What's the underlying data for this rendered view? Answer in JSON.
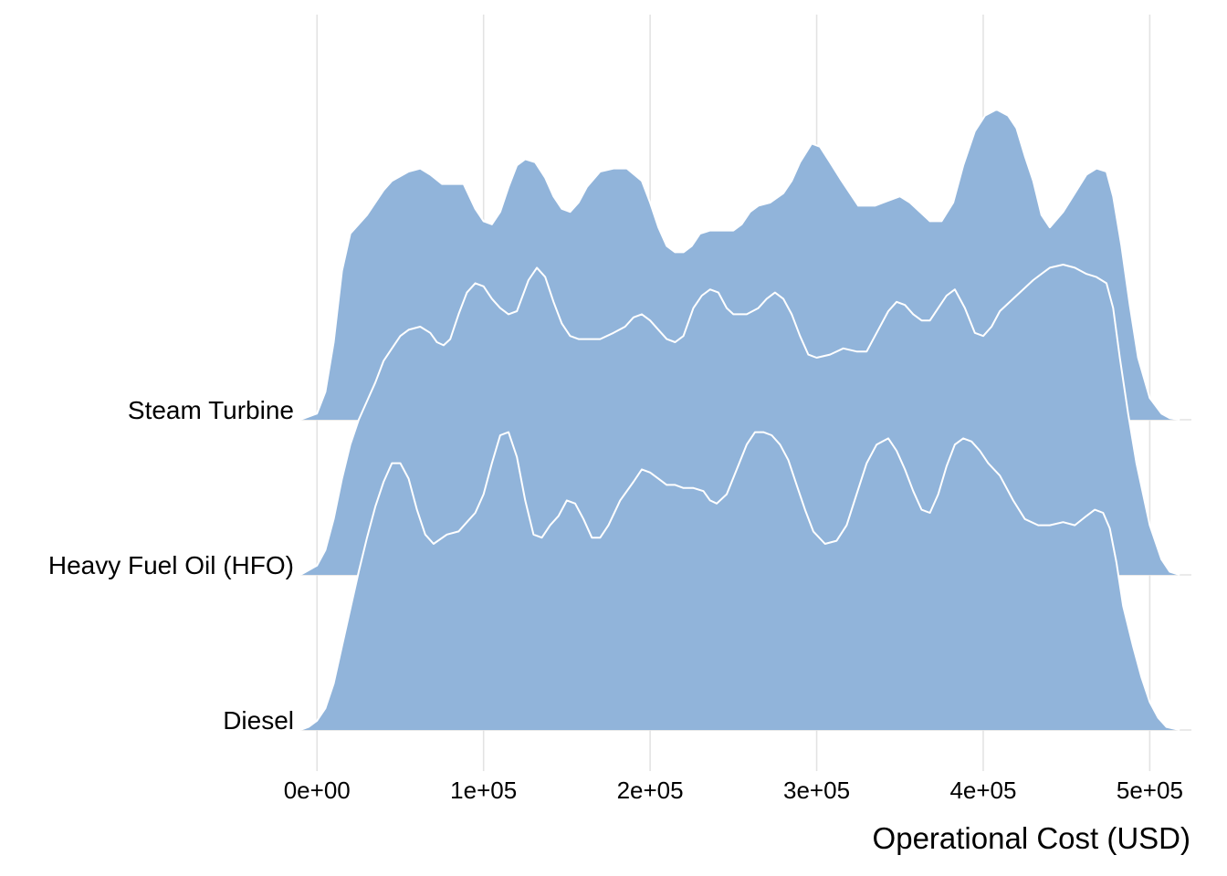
{
  "chart_data": {
    "type": "ridgeline",
    "title": "",
    "xlabel": "Operational Cost (USD)",
    "ylabel": "",
    "xlim": [
      -10000,
      525000
    ],
    "x_ticks": [
      0,
      100000,
      200000,
      300000,
      400000,
      500000
    ],
    "x_tick_labels": [
      "0e+00",
      "1e+05",
      "2e+05",
      "3e+05",
      "4e+05",
      "5e+05"
    ],
    "grid": "vertical major gridlines",
    "fill_color": "#91B4DA",
    "outline_color": "#FFFFFF",
    "categories": [
      "Steam Turbine",
      "Heavy Fuel Oil (HFO)",
      "Diesel"
    ],
    "series": [
      {
        "name": "Steam Turbine",
        "x": [
          -10000,
          0,
          5000,
          10000,
          15000,
          20000,
          30000,
          40000,
          45000,
          55000,
          62000,
          68000,
          75000,
          80000,
          88000,
          95000,
          100000,
          105000,
          110000,
          115000,
          120000,
          125000,
          131000,
          137000,
          142000,
          147000,
          152000,
          157000,
          162000,
          170000,
          178000,
          186000,
          195000,
          200000,
          205000,
          210000,
          215000,
          220000,
          225000,
          230000,
          236000,
          243000,
          250000,
          255000,
          260000,
          265000,
          272000,
          280000,
          285000,
          290000,
          297000,
          302000,
          308000,
          315000,
          320000,
          325000,
          335000,
          340000,
          350000,
          356000,
          362000,
          368000,
          375000,
          382000,
          388000,
          395000,
          401000,
          408000,
          415000,
          420000,
          425000,
          430000,
          435000,
          440000,
          448000,
          455000,
          462000,
          468000,
          474000,
          478000,
          483000,
          488000,
          493000,
          500000,
          507000,
          512000,
          518000
        ],
        "density": [
          0,
          0.02,
          0.09,
          0.25,
          0.48,
          0.6,
          0.66,
          0.74,
          0.77,
          0.8,
          0.81,
          0.79,
          0.76,
          0.76,
          0.76,
          0.68,
          0.64,
          0.63,
          0.67,
          0.75,
          0.82,
          0.84,
          0.83,
          0.78,
          0.72,
          0.68,
          0.67,
          0.7,
          0.75,
          0.8,
          0.81,
          0.81,
          0.77,
          0.7,
          0.62,
          0.56,
          0.54,
          0.54,
          0.56,
          0.6,
          0.61,
          0.61,
          0.61,
          0.63,
          0.67,
          0.69,
          0.7,
          0.73,
          0.77,
          0.83,
          0.89,
          0.88,
          0.83,
          0.77,
          0.73,
          0.69,
          0.69,
          0.7,
          0.72,
          0.7,
          0.67,
          0.64,
          0.64,
          0.7,
          0.82,
          0.93,
          0.98,
          1,
          0.98,
          0.94,
          0.85,
          0.77,
          0.66,
          0.62,
          0.67,
          0.73,
          0.79,
          0.81,
          0.8,
          0.72,
          0.56,
          0.37,
          0.2,
          0.07,
          0.02,
          0.005,
          0
        ]
      },
      {
        "name": "Heavy Fuel Oil (HFO)",
        "x": [
          -10000,
          0,
          5000,
          10000,
          15000,
          20000,
          25000,
          30000,
          35000,
          40000,
          45000,
          50000,
          55000,
          62000,
          68000,
          72000,
          76000,
          80000,
          85000,
          90000,
          95000,
          100000,
          105000,
          110000,
          115000,
          120000,
          127000,
          132000,
          137000,
          142000,
          147000,
          152000,
          157000,
          162000,
          170000,
          178000,
          185000,
          190000,
          195000,
          200000,
          205000,
          210000,
          215000,
          220000,
          226000,
          231000,
          236000,
          241000,
          246000,
          250000,
          258000,
          265000,
          270000,
          275000,
          280000,
          285000,
          290000,
          295000,
          300000,
          308000,
          316000,
          324000,
          330000,
          336000,
          343000,
          348000,
          353000,
          358000,
          363000,
          368000,
          373000,
          378000,
          383000,
          389000,
          395000,
          400000,
          405000,
          410000,
          420000,
          430000,
          440000,
          448000,
          455000,
          462000,
          468000,
          474000,
          478000,
          482000,
          487000,
          492000,
          500000,
          507000,
          512000,
          518000
        ],
        "density": [
          0,
          0.03,
          0.08,
          0.18,
          0.31,
          0.42,
          0.5,
          0.56,
          0.62,
          0.69,
          0.73,
          0.77,
          0.79,
          0.8,
          0.78,
          0.75,
          0.74,
          0.76,
          0.84,
          0.91,
          0.94,
          0.93,
          0.89,
          0.86,
          0.84,
          0.85,
          0.95,
          0.99,
          0.96,
          0.88,
          0.81,
          0.77,
          0.76,
          0.76,
          0.76,
          0.78,
          0.8,
          0.83,
          0.84,
          0.82,
          0.79,
          0.76,
          0.75,
          0.77,
          0.86,
          0.9,
          0.92,
          0.91,
          0.86,
          0.84,
          0.84,
          0.86,
          0.89,
          0.91,
          0.89,
          0.84,
          0.77,
          0.71,
          0.7,
          0.71,
          0.73,
          0.72,
          0.72,
          0.78,
          0.85,
          0.88,
          0.87,
          0.84,
          0.82,
          0.82,
          0.86,
          0.9,
          0.92,
          0.86,
          0.78,
          0.77,
          0.8,
          0.85,
          0.9,
          0.95,
          0.99,
          1,
          0.99,
          0.97,
          0.96,
          0.94,
          0.86,
          0.7,
          0.52,
          0.36,
          0.16,
          0.05,
          0.01,
          0
        ]
      },
      {
        "name": "Diesel",
        "x": [
          -10000,
          -5000,
          0,
          5000,
          10000,
          15000,
          20000,
          25000,
          30000,
          35000,
          40000,
          45000,
          50000,
          55000,
          60000,
          65000,
          70000,
          78000,
          85000,
          90000,
          95000,
          100000,
          105000,
          110000,
          115000,
          120000,
          125000,
          130000,
          135000,
          140000,
          145000,
          150000,
          155000,
          160000,
          165000,
          170000,
          175000,
          182000,
          190000,
          195000,
          200000,
          205000,
          210000,
          215000,
          220000,
          226000,
          232000,
          236000,
          240000,
          246000,
          252000,
          258000,
          263000,
          268000,
          273000,
          278000,
          283000,
          288000,
          293000,
          298000,
          305000,
          312000,
          318000,
          324000,
          330000,
          336000,
          343000,
          348000,
          353000,
          358000,
          363000,
          368000,
          373000,
          378000,
          383000,
          388000,
          393000,
          398000,
          403000,
          410000,
          418000,
          425000,
          433000,
          440000,
          448000,
          455000,
          462000,
          467000,
          472000,
          476000,
          480000,
          484000,
          490000,
          495000,
          500000,
          505000,
          510000,
          518000
        ],
        "density": [
          0,
          0.01,
          0.03,
          0.07,
          0.15,
          0.27,
          0.39,
          0.51,
          0.62,
          0.72,
          0.8,
          0.86,
          0.86,
          0.81,
          0.71,
          0.63,
          0.6,
          0.63,
          0.64,
          0.67,
          0.7,
          0.76,
          0.86,
          0.95,
          0.96,
          0.88,
          0.74,
          0.63,
          0.62,
          0.66,
          0.69,
          0.74,
          0.73,
          0.68,
          0.62,
          0.62,
          0.66,
          0.74,
          0.8,
          0.84,
          0.83,
          0.81,
          0.79,
          0.79,
          0.78,
          0.78,
          0.77,
          0.74,
          0.73,
          0.76,
          0.84,
          0.92,
          0.96,
          0.96,
          0.95,
          0.92,
          0.87,
          0.79,
          0.71,
          0.64,
          0.6,
          0.61,
          0.66,
          0.76,
          0.86,
          0.92,
          0.94,
          0.9,
          0.84,
          0.77,
          0.71,
          0.7,
          0.76,
          0.85,
          0.92,
          0.94,
          0.93,
          0.9,
          0.86,
          0.82,
          0.74,
          0.68,
          0.66,
          0.66,
          0.67,
          0.66,
          0.69,
          0.71,
          0.7,
          0.65,
          0.54,
          0.4,
          0.27,
          0.17,
          0.09,
          0.04,
          0.01,
          0
        ]
      }
    ]
  }
}
